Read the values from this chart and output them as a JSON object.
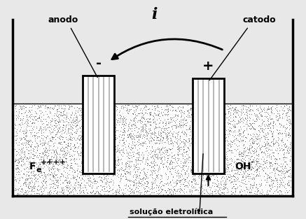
{
  "bg_color": "#e8e8e8",
  "anode_label": "anodo",
  "cathode_label": "catodo",
  "current_label": "i",
  "fe_text": "F",
  "fe_sub": "e",
  "fe_super": "++++",
  "oh_text": "OH",
  "oh_super": "-",
  "solution_label": "solução eletrolítica",
  "minus_sign": "-",
  "plus_sign": "+"
}
